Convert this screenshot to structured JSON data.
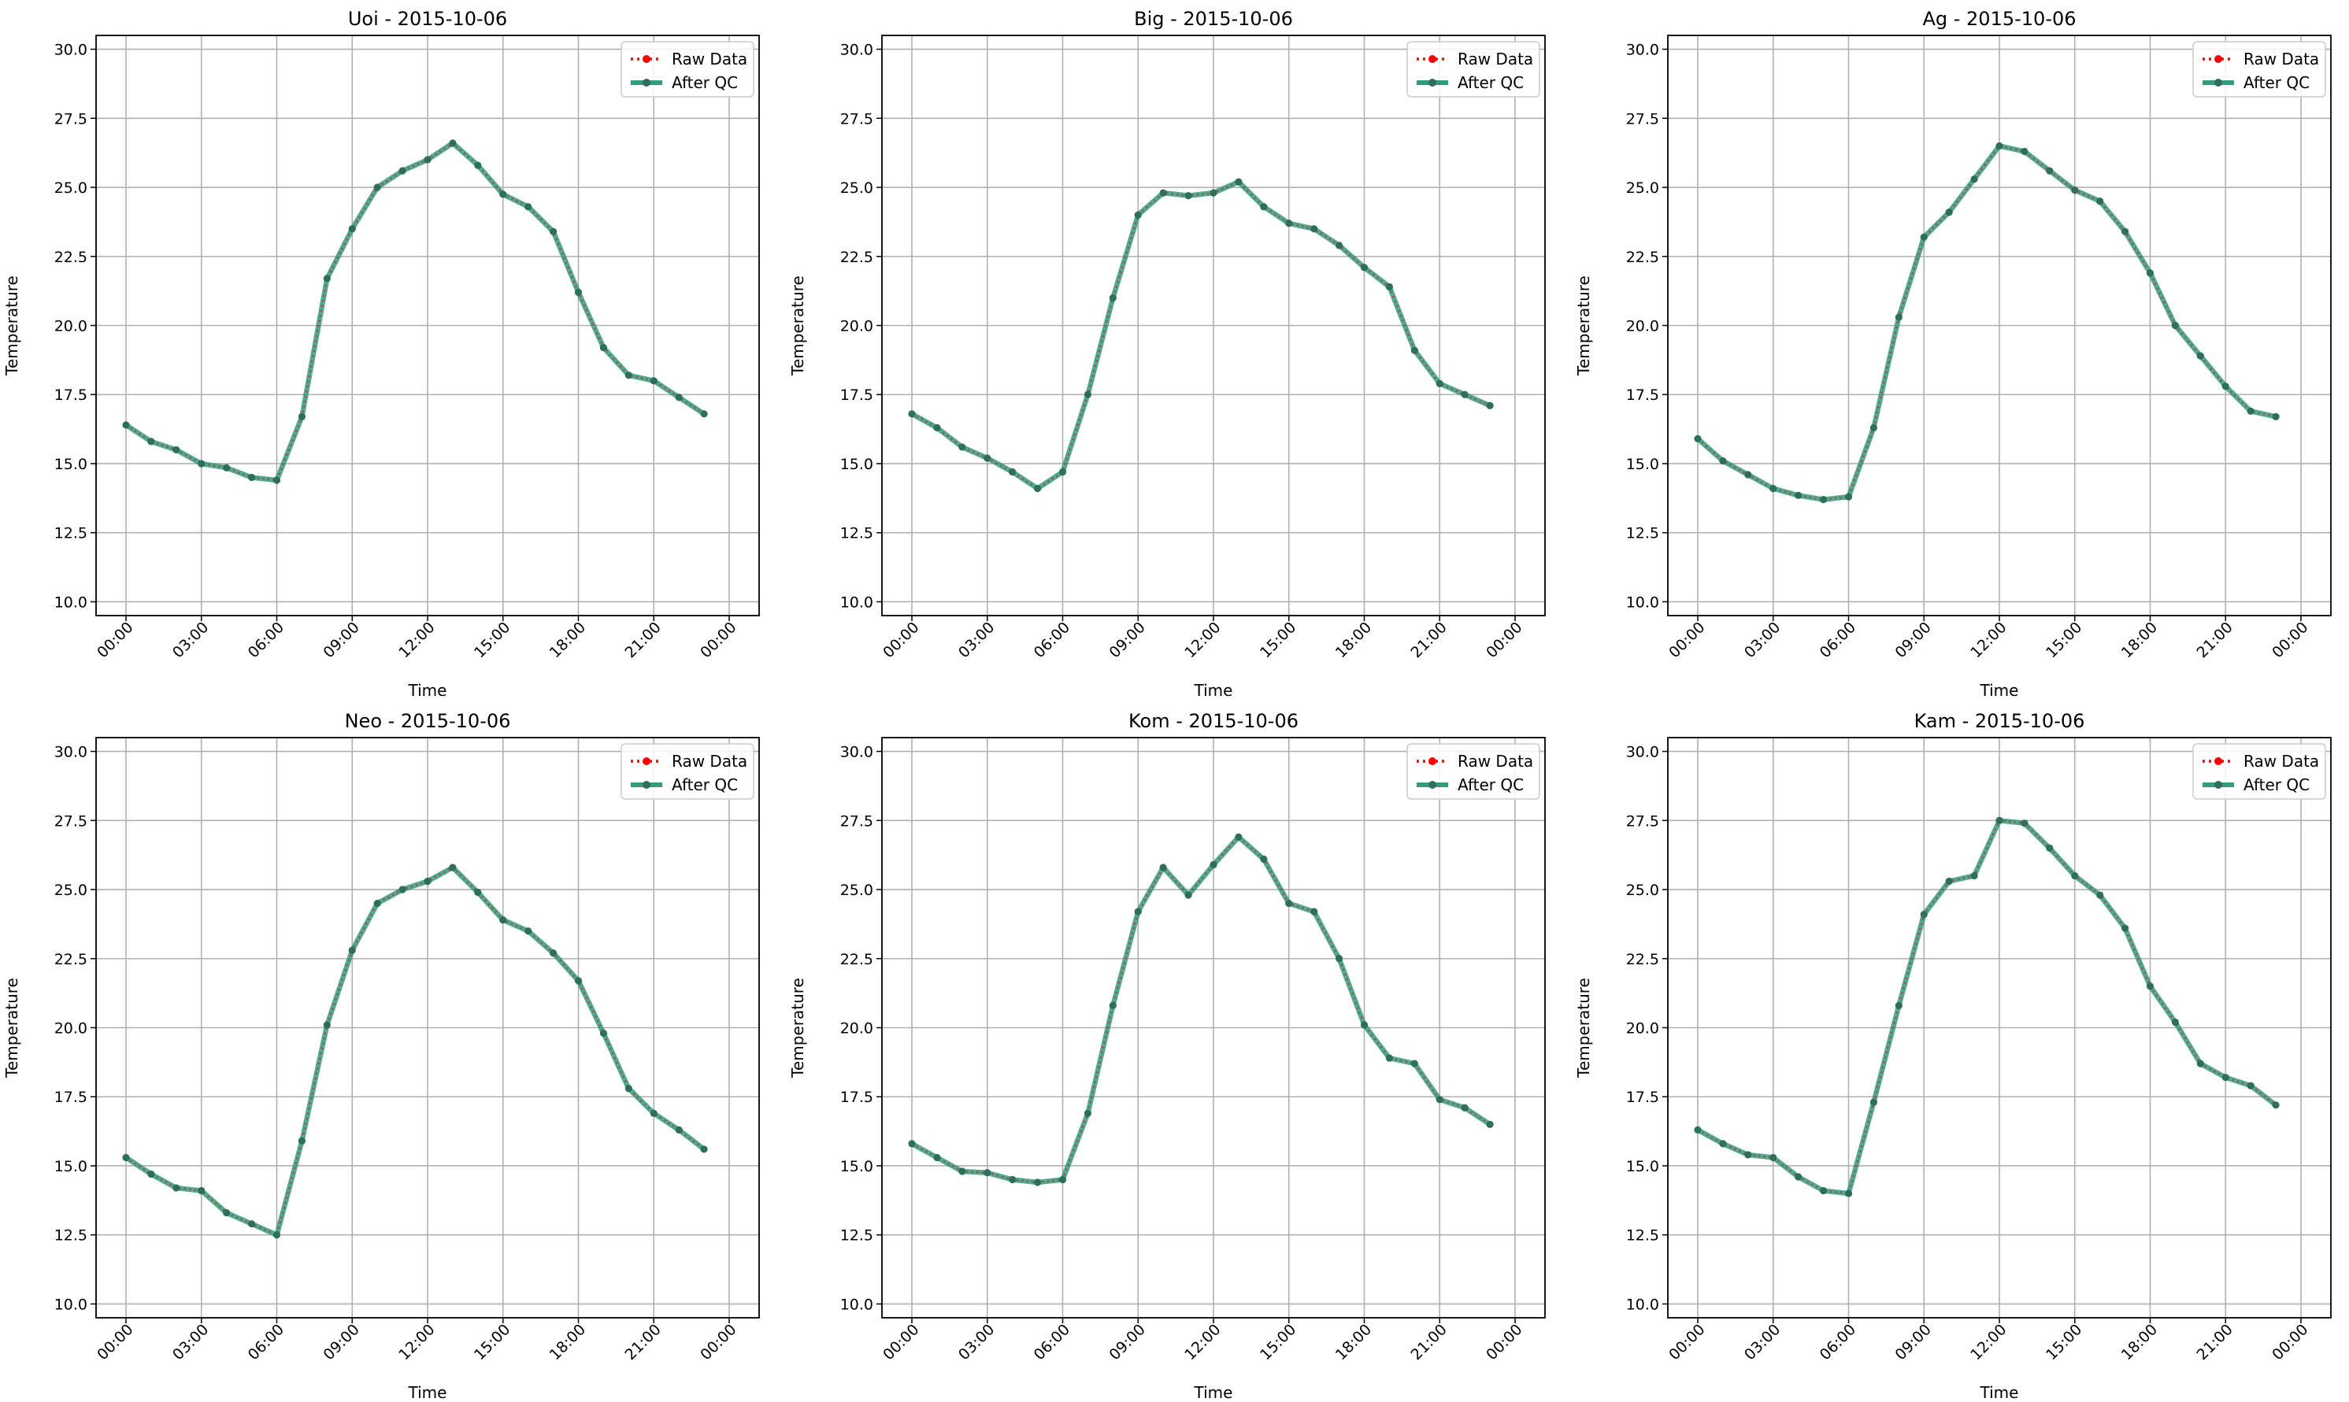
{
  "figure": {
    "x_tick_labels": [
      "00:00",
      "03:00",
      "06:00",
      "09:00",
      "12:00",
      "15:00",
      "18:00",
      "21:00",
      "00:00"
    ],
    "y_tick_labels": [
      "10.0",
      "12.5",
      "15.0",
      "17.5",
      "20.0",
      "22.5",
      "25.0",
      "27.5",
      "30.0"
    ],
    "legend": {
      "raw_label": "Raw Data",
      "qc_label": "After QC"
    },
    "colors": {
      "raw": "#ff0000",
      "qc": "#2e9e7e",
      "qc_marker": "#2f6e5a",
      "grid": "#b0b0b0"
    }
  },
  "chart_data": [
    {
      "type": "line",
      "title": "Uoi - 2015-10-06",
      "xlabel": "Time",
      "ylabel": "Temperature",
      "xlim": [
        "00:00",
        "00:00 (+1 day)"
      ],
      "ylim": [
        10,
        30
      ],
      "grid": true,
      "legend_position": "top-right",
      "x": [
        "00:00",
        "01:00",
        "02:00",
        "03:00",
        "04:00",
        "05:00",
        "06:00",
        "07:00",
        "08:00",
        "09:00",
        "10:00",
        "11:00",
        "12:00",
        "13:00",
        "14:00",
        "15:00",
        "16:00",
        "17:00",
        "18:00",
        "19:00",
        "20:00",
        "21:00",
        "22:00",
        "23:00"
      ],
      "series": [
        {
          "name": "Raw Data",
          "values": [
            16.4,
            15.8,
            15.5,
            15.0,
            14.85,
            14.5,
            14.4,
            16.7,
            21.7,
            23.5,
            25.0,
            25.6,
            26.0,
            26.6,
            25.8,
            24.75,
            24.3,
            23.4,
            21.2,
            19.2,
            18.2,
            18.0,
            17.4,
            16.8
          ]
        },
        {
          "name": "After QC",
          "values": [
            16.4,
            15.8,
            15.5,
            15.0,
            14.85,
            14.5,
            14.4,
            16.7,
            21.7,
            23.5,
            25.0,
            25.6,
            26.0,
            26.6,
            25.8,
            24.75,
            24.3,
            23.4,
            21.2,
            19.2,
            18.2,
            18.0,
            17.4,
            16.8
          ]
        }
      ]
    },
    {
      "type": "line",
      "title": "Big - 2015-10-06",
      "xlabel": "Time",
      "ylabel": "Temperature",
      "xlim": [
        "00:00",
        "00:00 (+1 day)"
      ],
      "ylim": [
        10,
        30
      ],
      "grid": true,
      "legend_position": "top-right",
      "x": [
        "00:00",
        "01:00",
        "02:00",
        "03:00",
        "04:00",
        "05:00",
        "06:00",
        "07:00",
        "08:00",
        "09:00",
        "10:00",
        "11:00",
        "12:00",
        "13:00",
        "14:00",
        "15:00",
        "16:00",
        "17:00",
        "18:00",
        "19:00",
        "20:00",
        "21:00",
        "22:00",
        "23:00"
      ],
      "series": [
        {
          "name": "Raw Data",
          "values": [
            16.8,
            16.3,
            15.6,
            15.2,
            14.7,
            14.1,
            14.7,
            17.5,
            21.0,
            24.0,
            24.8,
            24.7,
            24.8,
            25.2,
            24.3,
            23.7,
            23.5,
            22.9,
            22.1,
            21.4,
            19.1,
            17.9,
            17.5,
            17.1
          ]
        },
        {
          "name": "After QC",
          "values": [
            16.8,
            16.3,
            15.6,
            15.2,
            14.7,
            14.1,
            14.7,
            17.5,
            21.0,
            24.0,
            24.8,
            24.7,
            24.8,
            25.2,
            24.3,
            23.7,
            23.5,
            22.9,
            22.1,
            21.4,
            19.1,
            17.9,
            17.5,
            17.1
          ]
        }
      ]
    },
    {
      "type": "line",
      "title": "Ag - 2015-10-06",
      "xlabel": "Time",
      "ylabel": "Temperature",
      "xlim": [
        "00:00",
        "00:00 (+1 day)"
      ],
      "ylim": [
        10,
        30
      ],
      "grid": true,
      "legend_position": "top-right",
      "x": [
        "00:00",
        "01:00",
        "02:00",
        "03:00",
        "04:00",
        "05:00",
        "06:00",
        "07:00",
        "08:00",
        "09:00",
        "10:00",
        "11:00",
        "12:00",
        "13:00",
        "14:00",
        "15:00",
        "16:00",
        "17:00",
        "18:00",
        "19:00",
        "20:00",
        "21:00",
        "22:00",
        "23:00"
      ],
      "series": [
        {
          "name": "Raw Data",
          "values": [
            15.9,
            15.1,
            14.6,
            14.1,
            13.85,
            13.7,
            13.8,
            16.3,
            20.3,
            23.2,
            24.1,
            25.3,
            26.5,
            26.3,
            25.6,
            24.9,
            24.5,
            23.4,
            21.9,
            20.0,
            18.9,
            17.8,
            16.9,
            16.7
          ]
        },
        {
          "name": "After QC",
          "values": [
            15.9,
            15.1,
            14.6,
            14.1,
            13.85,
            13.7,
            13.8,
            16.3,
            20.3,
            23.2,
            24.1,
            25.3,
            26.5,
            26.3,
            25.6,
            24.9,
            24.5,
            23.4,
            21.9,
            20.0,
            18.9,
            17.8,
            16.9,
            16.7
          ]
        }
      ]
    },
    {
      "type": "line",
      "title": "Neo - 2015-10-06",
      "xlabel": "Time",
      "ylabel": "Temperature",
      "xlim": [
        "00:00",
        "00:00 (+1 day)"
      ],
      "ylim": [
        10,
        30
      ],
      "grid": true,
      "legend_position": "top-right",
      "x": [
        "00:00",
        "01:00",
        "02:00",
        "03:00",
        "04:00",
        "05:00",
        "06:00",
        "07:00",
        "08:00",
        "09:00",
        "10:00",
        "11:00",
        "12:00",
        "13:00",
        "14:00",
        "15:00",
        "16:00",
        "17:00",
        "18:00",
        "19:00",
        "20:00",
        "21:00",
        "22:00",
        "23:00"
      ],
      "series": [
        {
          "name": "Raw Data",
          "values": [
            15.3,
            14.7,
            14.2,
            14.1,
            13.3,
            12.9,
            12.5,
            15.9,
            20.1,
            22.8,
            24.5,
            25.0,
            25.3,
            25.8,
            24.9,
            23.9,
            23.5,
            22.7,
            21.7,
            19.8,
            17.8,
            16.9,
            16.3,
            15.6
          ]
        },
        {
          "name": "After QC",
          "values": [
            15.3,
            14.7,
            14.2,
            14.1,
            13.3,
            12.9,
            12.5,
            15.9,
            20.1,
            22.8,
            24.5,
            25.0,
            25.3,
            25.8,
            24.9,
            23.9,
            23.5,
            22.7,
            21.7,
            19.8,
            17.8,
            16.9,
            16.3,
            15.6
          ]
        }
      ]
    },
    {
      "type": "line",
      "title": "Kom - 2015-10-06",
      "xlabel": "Time",
      "ylabel": "Temperature",
      "xlim": [
        "00:00",
        "00:00 (+1 day)"
      ],
      "ylim": [
        10,
        30
      ],
      "grid": true,
      "legend_position": "top-right",
      "x": [
        "00:00",
        "01:00",
        "02:00",
        "03:00",
        "04:00",
        "05:00",
        "06:00",
        "07:00",
        "08:00",
        "09:00",
        "10:00",
        "11:00",
        "12:00",
        "13:00",
        "14:00",
        "15:00",
        "16:00",
        "17:00",
        "18:00",
        "19:00",
        "20:00",
        "21:00",
        "22:00",
        "23:00"
      ],
      "series": [
        {
          "name": "Raw Data",
          "values": [
            15.8,
            15.3,
            14.8,
            14.75,
            14.5,
            14.4,
            14.5,
            16.9,
            20.8,
            24.2,
            25.8,
            24.8,
            25.9,
            26.9,
            26.1,
            24.5,
            24.2,
            22.5,
            20.1,
            18.9,
            18.7,
            17.4,
            17.1,
            16.5
          ]
        },
        {
          "name": "After QC",
          "values": [
            15.8,
            15.3,
            14.8,
            14.75,
            14.5,
            14.4,
            14.5,
            16.9,
            20.8,
            24.2,
            25.8,
            24.8,
            25.9,
            26.9,
            26.1,
            24.5,
            24.2,
            22.5,
            20.1,
            18.9,
            18.7,
            17.4,
            17.1,
            16.5
          ]
        }
      ]
    },
    {
      "type": "line",
      "title": "Kam - 2015-10-06",
      "xlabel": "Time",
      "ylabel": "Temperature",
      "xlim": [
        "00:00",
        "00:00 (+1 day)"
      ],
      "ylim": [
        10,
        30
      ],
      "grid": true,
      "legend_position": "top-right",
      "x": [
        "00:00",
        "01:00",
        "02:00",
        "03:00",
        "04:00",
        "05:00",
        "06:00",
        "07:00",
        "08:00",
        "09:00",
        "10:00",
        "11:00",
        "12:00",
        "13:00",
        "14:00",
        "15:00",
        "16:00",
        "17:00",
        "18:00",
        "19:00",
        "20:00",
        "21:00",
        "22:00",
        "23:00"
      ],
      "series": [
        {
          "name": "Raw Data",
          "values": [
            16.3,
            15.8,
            15.4,
            15.3,
            14.6,
            14.1,
            14.0,
            17.3,
            20.8,
            24.1,
            25.3,
            25.5,
            27.5,
            27.4,
            26.5,
            25.5,
            24.8,
            23.6,
            21.5,
            20.2,
            18.7,
            18.2,
            17.9,
            17.2
          ]
        },
        {
          "name": "After QC",
          "values": [
            16.3,
            15.8,
            15.4,
            15.3,
            14.6,
            14.1,
            14.0,
            17.3,
            20.8,
            24.1,
            25.3,
            25.5,
            27.5,
            27.4,
            26.5,
            25.5,
            24.8,
            23.6,
            21.5,
            20.2,
            18.7,
            18.2,
            17.9,
            17.2
          ]
        }
      ]
    }
  ]
}
